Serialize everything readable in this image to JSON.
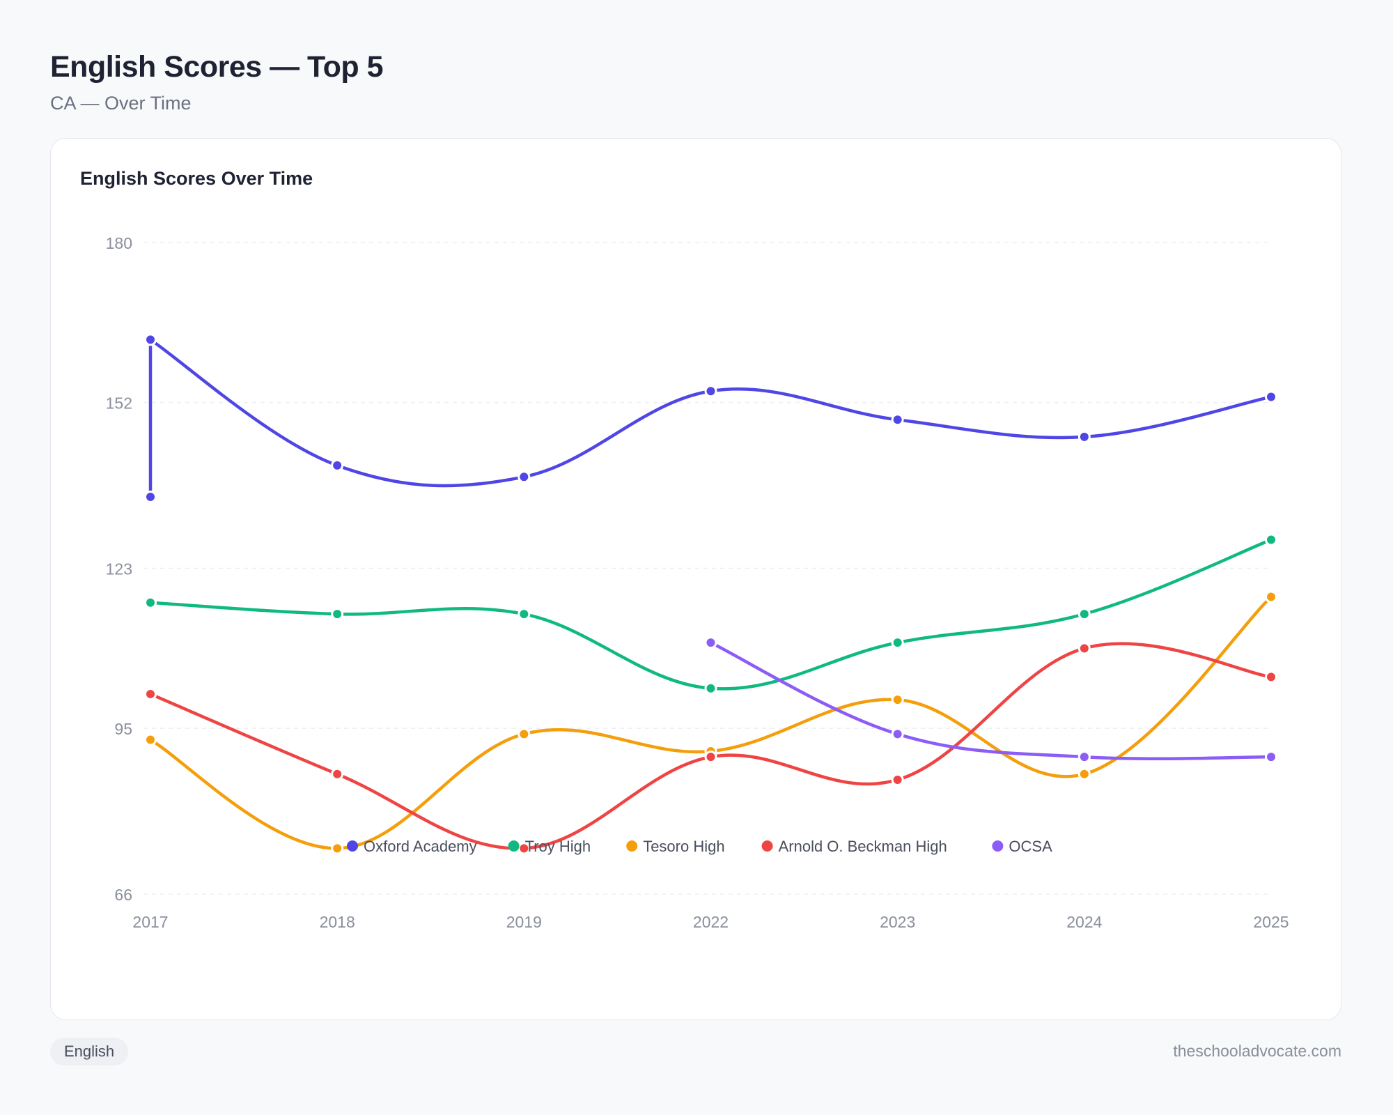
{
  "header": {
    "title": "English Scores — Top 5",
    "subtitle": "CA — Over Time"
  },
  "card": {
    "title": "English Scores Over Time"
  },
  "footer": {
    "tag_label": "English",
    "site_label": "theschooladvocate.com"
  },
  "colors": {
    "Oxford Academy": "#4f46e5",
    "Troy High": "#10b981",
    "Tesoro High": "#f59e0b",
    "Arnold O. Beckman High": "#ef4444",
    "OCSA": "#8b5cf6"
  },
  "chart_data": {
    "type": "line",
    "title": "English Scores Over Time",
    "categories": [
      "2017",
      "2018",
      "2019",
      "2022",
      "2023",
      "2024",
      "2025"
    ],
    "yticks": [
      66,
      95,
      123,
      152,
      180
    ],
    "ylim": [
      66,
      180
    ],
    "grid": true,
    "legend_position": "bottom",
    "series": [
      {
        "name": "Oxford Academy",
        "extra_2017": 135.5,
        "values": [
          163,
          141,
          139,
          154,
          149,
          146,
          153
        ]
      },
      {
        "name": "Troy High",
        "values": [
          117,
          115,
          115,
          102,
          110,
          115,
          128
        ]
      },
      {
        "name": "Tesoro High",
        "values": [
          93,
          74,
          94,
          91,
          100,
          87,
          118
        ]
      },
      {
        "name": "Arnold O. Beckman High",
        "values": [
          101,
          87,
          74,
          90,
          86,
          109,
          104
        ]
      },
      {
        "name": "OCSA",
        "values": [
          null,
          null,
          null,
          110,
          94,
          90,
          90
        ]
      }
    ]
  }
}
